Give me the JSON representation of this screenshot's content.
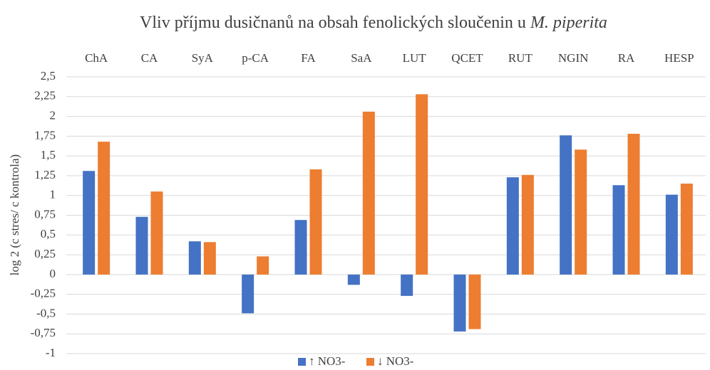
{
  "chart_data": {
    "type": "bar",
    "title": [
      "Vliv příjmu dusičnanů na obsah fenolických sloučenin u ",
      "M. piperita"
    ],
    "y_label": "log 2 (c stres/ c kontrola)",
    "categories": [
      "ChA",
      "CA",
      "SyA",
      "p-CA",
      "FA",
      "SaA",
      "LUT",
      "QCET",
      "RUT",
      "NGIN",
      "RA",
      "HESP"
    ],
    "series": [
      {
        "name": "↑ NO3-",
        "color": "#4472c4",
        "values": [
          1.31,
          0.73,
          0.42,
          -0.49,
          0.69,
          -0.13,
          -0.27,
          -0.72,
          1.23,
          1.76,
          1.13,
          1.01
        ]
      },
      {
        "name": "↓ NO3-",
        "color": "#ed7d31",
        "values": [
          1.68,
          1.05,
          0.41,
          0.23,
          1.33,
          2.06,
          2.28,
          -0.69,
          1.26,
          1.58,
          1.78,
          1.15
        ]
      }
    ],
    "ylim": [
      -1,
      2.5
    ],
    "yticks": [
      -1,
      {
        "value": -0.75,
        "label": "-0,75"
      },
      {
        "value": -0.5,
        "label": "-0,5"
      },
      {
        "value": -0.25,
        "label": "-0,25"
      },
      0,
      {
        "value": 0.25,
        "label": "0,25"
      },
      {
        "value": 0.5,
        "label": "0,5"
      },
      {
        "value": 0.75,
        "label": "0,75"
      },
      1,
      {
        "value": 1.25,
        "label": "1,25"
      },
      {
        "value": 1.5,
        "label": "1,5"
      },
      {
        "value": 1.75,
        "label": "1,75"
      },
      2,
      {
        "value": 2.25,
        "label": "2,25"
      },
      {
        "value": 2.5,
        "label": "2,5"
      }
    ],
    "grid": true,
    "legend": "bottom"
  }
}
